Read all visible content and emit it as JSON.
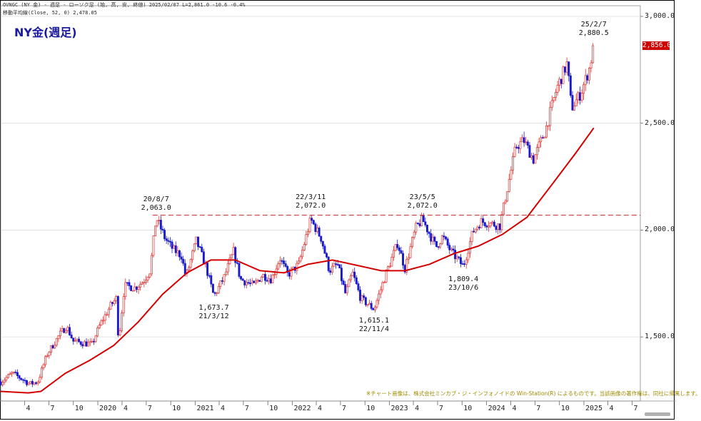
{
  "header": {
    "line1": "OVNGC (NY 金) - 週足 - ローソク足 (始, 高, 安, 終値)  2025/02/07 L=2,861.0 -10.6 -0.4%",
    "line2": "移動平均線(Close, 52, 0) 2,478.05"
  },
  "title": "NY金(週足)",
  "current_price": "2,856.0",
  "copyright": "※チャート画像は、株式会社ミンカブ・ジ・インフォノイドの Win-Station(R) によるものです。当該画像の著作権は、同社に帰属します。",
  "colors": {
    "up": "#e03030",
    "down": "#1a1acc",
    "ma": "#d40000",
    "ref_line": "#cc3333",
    "title": "#1a1aa0"
  },
  "chart_data": {
    "type": "candlestick",
    "title": "NY金(週足)",
    "ylim": [
      1200,
      3050
    ],
    "y_ticks": [
      {
        "value": 1500,
        "label": "1,500.0"
      },
      {
        "value": 2000,
        "label": "2,000.0"
      },
      {
        "value": 2500,
        "label": "2,500.0"
      },
      {
        "value": 3000,
        "label": "3,000.0"
      }
    ],
    "x_range": [
      "2019-01-01",
      "2025-08-01"
    ],
    "x_ticks": [
      {
        "date": "2019-04-01",
        "label": "4"
      },
      {
        "date": "2019-07-01",
        "label": "7"
      },
      {
        "date": "2019-10-01",
        "label": "10"
      },
      {
        "date": "2020-01-01",
        "label": "2020"
      },
      {
        "date": "2020-04-01",
        "label": "4"
      },
      {
        "date": "2020-07-01",
        "label": "7"
      },
      {
        "date": "2020-10-01",
        "label": "10"
      },
      {
        "date": "2021-01-01",
        "label": "2021"
      },
      {
        "date": "2021-04-01",
        "label": "4"
      },
      {
        "date": "2021-07-01",
        "label": "7"
      },
      {
        "date": "2021-10-01",
        "label": "10"
      },
      {
        "date": "2022-01-01",
        "label": "2022"
      },
      {
        "date": "2022-04-01",
        "label": "4"
      },
      {
        "date": "2022-07-01",
        "label": "7"
      },
      {
        "date": "2022-10-01",
        "label": "10"
      },
      {
        "date": "2023-01-01",
        "label": "2023"
      },
      {
        "date": "2023-04-01",
        "label": "4"
      },
      {
        "date": "2023-07-01",
        "label": "7"
      },
      {
        "date": "2023-10-01",
        "label": "10"
      },
      {
        "date": "2024-01-01",
        "label": "2024"
      },
      {
        "date": "2024-04-01",
        "label": "4"
      },
      {
        "date": "2024-07-01",
        "label": "7"
      },
      {
        "date": "2024-10-01",
        "label": "10"
      },
      {
        "date": "2025-01-01",
        "label": "2025"
      },
      {
        "date": "2025-04-01",
        "label": "4"
      },
      {
        "date": "2025-07-01",
        "label": "7"
      }
    ],
    "reference_line": {
      "value": 2070,
      "style": "dashed"
    },
    "annotations": [
      {
        "date": "2020-08-07",
        "value": 2063.0,
        "label_date": "20/8/7",
        "label_value": "2,063.0",
        "position": "above"
      },
      {
        "date": "2021-03-12",
        "value": 1673.7,
        "label_date": "21/3/12",
        "label_value": "1,673.7",
        "position": "below"
      },
      {
        "date": "2022-03-11",
        "value": 2072.0,
        "label_date": "22/3/11",
        "label_value": "2,072.0",
        "position": "above"
      },
      {
        "date": "2022-11-04",
        "value": 1615.1,
        "label_date": "22/11/4",
        "label_value": "1,615.1",
        "position": "below"
      },
      {
        "date": "2023-05-05",
        "value": 2072.0,
        "label_date": "23/5/5",
        "label_value": "2,072.0",
        "position": "above"
      },
      {
        "date": "2023-10-06",
        "value": 1809.4,
        "label_date": "23/10/6",
        "label_value": "1,809.4",
        "position": "below"
      },
      {
        "date": "2025-02-07",
        "value": 2880.5,
        "label_date": "25/2/7",
        "label_value": "2,880.5",
        "position": "above"
      }
    ],
    "price_path": [
      [
        "2019-01-01",
        1290
      ],
      [
        "2019-02-15",
        1330
      ],
      [
        "2019-04-20",
        1280
      ],
      [
        "2019-05-20",
        1290
      ],
      [
        "2019-06-25",
        1420
      ],
      [
        "2019-08-10",
        1510
      ],
      [
        "2019-09-05",
        1550
      ],
      [
        "2019-10-01",
        1480
      ],
      [
        "2019-11-15",
        1470
      ],
      [
        "2019-12-10",
        1465
      ],
      [
        "2020-01-10",
        1560
      ],
      [
        "2020-02-20",
        1650
      ],
      [
        "2020-03-10",
        1680
      ],
      [
        "2020-03-19",
        1480
      ],
      [
        "2020-04-10",
        1740
      ],
      [
        "2020-05-20",
        1730
      ],
      [
        "2020-06-20",
        1760
      ],
      [
        "2020-07-15",
        1810
      ],
      [
        "2020-08-07",
        2060
      ],
      [
        "2020-09-10",
        1960
      ],
      [
        "2020-10-10",
        1910
      ],
      [
        "2020-11-10",
        1880
      ],
      [
        "2020-11-27",
        1780
      ],
      [
        "2021-01-05",
        1950
      ],
      [
        "2021-02-10",
        1830
      ],
      [
        "2021-03-12",
        1690
      ],
      [
        "2021-04-20",
        1780
      ],
      [
        "2021-05-25",
        1900
      ],
      [
        "2021-06-20",
        1770
      ],
      [
        "2021-08-09",
        1740
      ],
      [
        "2021-09-10",
        1790
      ],
      [
        "2021-10-15",
        1770
      ],
      [
        "2021-11-15",
        1870
      ],
      [
        "2021-12-15",
        1790
      ],
      [
        "2022-01-25",
        1840
      ],
      [
        "2022-03-11",
        2050
      ],
      [
        "2022-04-20",
        1960
      ],
      [
        "2022-05-20",
        1810
      ],
      [
        "2022-06-20",
        1840
      ],
      [
        "2022-07-20",
        1700
      ],
      [
        "2022-08-15",
        1800
      ],
      [
        "2022-09-15",
        1680
      ],
      [
        "2022-11-04",
        1630
      ],
      [
        "2022-12-20",
        1800
      ],
      [
        "2023-02-01",
        1940
      ],
      [
        "2023-02-28",
        1820
      ],
      [
        "2023-04-10",
        2010
      ],
      [
        "2023-05-05",
        2050
      ],
      [
        "2023-06-25",
        1920
      ],
      [
        "2023-07-20",
        1970
      ],
      [
        "2023-08-20",
        1900
      ],
      [
        "2023-10-06",
        1830
      ],
      [
        "2023-11-10",
        1990
      ],
      [
        "2023-12-10",
        2040
      ],
      [
        "2024-01-20",
        2030
      ],
      [
        "2024-02-20",
        2020
      ],
      [
        "2024-03-15",
        2170
      ],
      [
        "2024-04-20",
        2390
      ],
      [
        "2024-05-20",
        2420
      ],
      [
        "2024-06-25",
        2330
      ],
      [
        "2024-08-10",
        2470
      ],
      [
        "2024-09-20",
        2660
      ],
      [
        "2024-10-30",
        2780
      ],
      [
        "2024-11-15",
        2570
      ],
      [
        "2024-12-20",
        2640
      ],
      [
        "2025-01-20",
        2750
      ],
      [
        "2025-02-07",
        2860
      ]
    ],
    "moving_average": {
      "name": "移動平均線(Close, 52, 0)",
      "points": [
        [
          "2019-01-01",
          1245
        ],
        [
          "2019-04-15",
          1238
        ],
        [
          "2019-06-01",
          1245
        ],
        [
          "2019-09-01",
          1330
        ],
        [
          "2019-12-01",
          1390
        ],
        [
          "2020-03-01",
          1460
        ],
        [
          "2020-06-01",
          1570
        ],
        [
          "2020-09-01",
          1700
        ],
        [
          "2020-12-01",
          1800
        ],
        [
          "2021-03-01",
          1860
        ],
        [
          "2021-06-01",
          1860
        ],
        [
          "2021-09-01",
          1810
        ],
        [
          "2021-12-01",
          1800
        ],
        [
          "2022-03-01",
          1840
        ],
        [
          "2022-06-01",
          1860
        ],
        [
          "2022-09-01",
          1835
        ],
        [
          "2022-12-01",
          1810
        ],
        [
          "2023-03-01",
          1810
        ],
        [
          "2023-06-01",
          1840
        ],
        [
          "2023-09-01",
          1890
        ],
        [
          "2023-12-01",
          1925
        ],
        [
          "2024-03-01",
          1980
        ],
        [
          "2024-06-01",
          2060
        ],
        [
          "2024-09-01",
          2210
        ],
        [
          "2024-12-01",
          2360
        ],
        [
          "2025-02-07",
          2478
        ]
      ]
    }
  }
}
